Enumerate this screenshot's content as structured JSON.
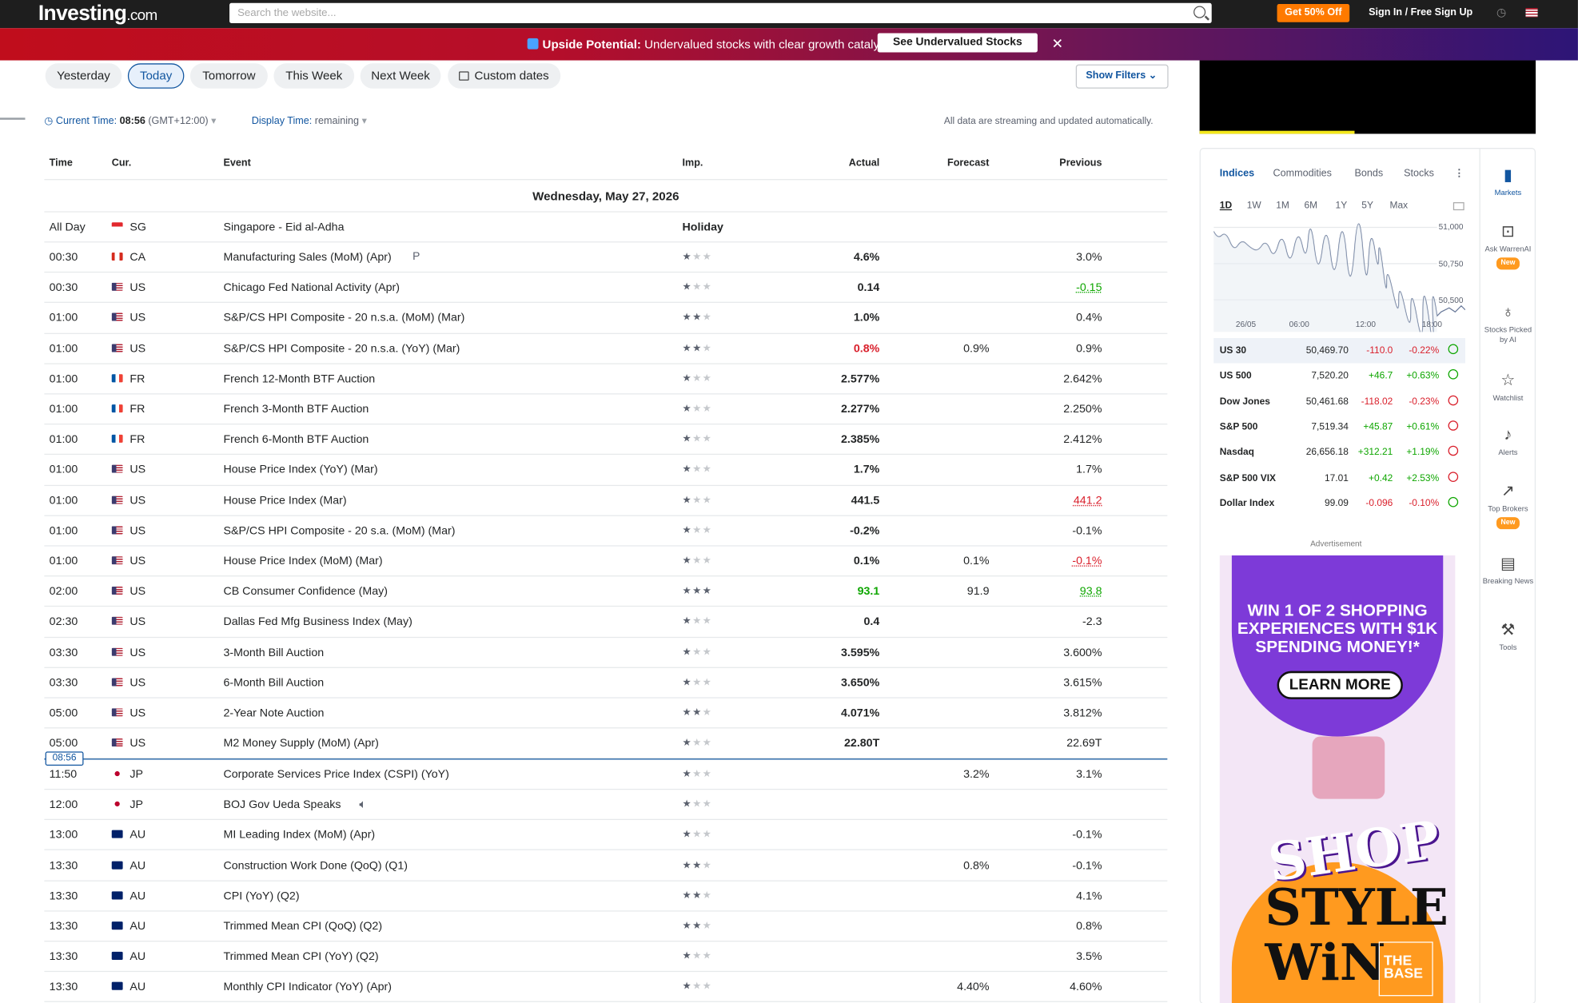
{
  "topbar": {
    "logo": "Investing",
    "logo_suffix": ".com",
    "search_placeholder": "Search the website...",
    "get_button": "Get 50% Off",
    "sign_in": "Sign In",
    "sep": "/",
    "free_sign_up": "Free Sign Up"
  },
  "banner": {
    "bold": "Upside Potential:",
    "text": " Undervalued stocks with clear growth catalysts",
    "button": "See Undervalued Stocks",
    "close": "✕"
  },
  "date_tabs": [
    "Yesterday",
    "Today",
    "Tomorrow",
    "This Week",
    "Next Week",
    "Custom dates"
  ],
  "show_filters": "Show Filters",
  "time_info": {
    "current_label": "Current Time:",
    "current_value": "08:56",
    "tz": "(GMT+12:00)",
    "display_label": "Display Time:",
    "display_value": "remaining",
    "streaming": "All data are streaming and updated automatically."
  },
  "table": {
    "headers": {
      "time": "Time",
      "cur": "Cur.",
      "event": "Event",
      "imp": "Imp.",
      "actual": "Actual",
      "forecast": "Forecast",
      "previous": "Previous"
    },
    "date_heading": "Wednesday, May 27, 2026",
    "holiday": {
      "time": "All Day",
      "cur": "SG",
      "event": "Singapore - Eid al-Adha",
      "label": "Holiday"
    },
    "rows": [
      {
        "time": "00:30",
        "cur": "CA",
        "event": "Manufacturing Sales (MoM) (Apr)",
        "stars": 1,
        "actual": "4.6%",
        "forecast": "",
        "previous": "3.0%"
      },
      {
        "time": "00:30",
        "cur": "US",
        "event": "Chicago Fed National Activity  (Apr)",
        "stars": 1,
        "actual": "0.14",
        "forecast": "",
        "previous": "-0.15"
      },
      {
        "time": "01:00",
        "cur": "US",
        "event": "S&P/CS HPI Composite - 20 n.s.a. (MoM) (Mar)",
        "stars": 2,
        "actual": "1.0%",
        "forecast": "",
        "previous": "0.4%"
      },
      {
        "time": "01:00",
        "cur": "US",
        "event": "S&P/CS HPI Composite - 20 n.s.a. (YoY) (Mar)",
        "stars": 2,
        "actual": "0.8%",
        "forecast": "0.9%",
        "previous": "0.9%"
      },
      {
        "time": "01:00",
        "cur": "FR",
        "event": "French 12-Month BTF Auction",
        "stars": 1,
        "actual": "2.577%",
        "forecast": "",
        "previous": "2.642%"
      },
      {
        "time": "01:00",
        "cur": "FR",
        "event": "French 3-Month BTF Auction",
        "stars": 1,
        "actual": "2.277%",
        "forecast": "",
        "previous": "2.250%"
      },
      {
        "time": "01:00",
        "cur": "FR",
        "event": "French 6-Month BTF Auction",
        "stars": 1,
        "actual": "2.385%",
        "forecast": "",
        "previous": "2.412%"
      },
      {
        "time": "01:00",
        "cur": "US",
        "event": "House Price Index (YoY) (Mar)",
        "stars": 1,
        "actual": "1.7%",
        "forecast": "",
        "previous": "1.7%"
      },
      {
        "time": "01:00",
        "cur": "US",
        "event": "House Price Index  (Mar)",
        "stars": 1,
        "actual": "441.5",
        "forecast": "",
        "previous": "441.2"
      },
      {
        "time": "01:00",
        "cur": "US",
        "event": "S&P/CS HPI Composite - 20 s.a. (MoM) (Mar)",
        "stars": 1,
        "actual": "-0.2%",
        "forecast": "",
        "previous": "-0.1%"
      },
      {
        "time": "01:00",
        "cur": "US",
        "event": "House Price Index (MoM) (Mar)",
        "stars": 1,
        "actual": "0.1%",
        "forecast": "0.1%",
        "previous": "-0.1%"
      },
      {
        "time": "02:00",
        "cur": "US",
        "event": "CB Consumer Confidence  (May)",
        "stars": 3,
        "actual": "93.1",
        "forecast": "91.9",
        "previous": "93.8"
      },
      {
        "time": "02:30",
        "cur": "US",
        "event": "Dallas Fed Mfg Business Index  (May)",
        "stars": 1,
        "actual": "0.4",
        "forecast": "",
        "previous": "-2.3"
      },
      {
        "time": "03:30",
        "cur": "US",
        "event": "3-Month Bill Auction",
        "stars": 1,
        "actual": "3.595%",
        "forecast": "",
        "previous": "3.600%"
      },
      {
        "time": "03:30",
        "cur": "US",
        "event": "6-Month Bill Auction",
        "stars": 1,
        "actual": "3.650%",
        "forecast": "",
        "previous": "3.615%"
      },
      {
        "time": "05:00",
        "cur": "US",
        "event": "2-Year Note Auction",
        "stars": 2,
        "actual": "4.071%",
        "forecast": "",
        "previous": "3.812%"
      },
      {
        "time": "05:00",
        "cur": "US",
        "event": "M2 Money Supply (MoM) (Apr)",
        "stars": 1,
        "actual": "22.80T",
        "forecast": "",
        "previous": "22.69T"
      },
      {
        "time": "11:50",
        "cur": "JP",
        "event": "Corporate Services Price Index (CSPI) (YoY)",
        "stars": 1,
        "actual": "",
        "forecast": "3.2%",
        "previous": "3.1%"
      },
      {
        "time": "12:00",
        "cur": "JP",
        "event": "BOJ Gov Ueda Speaks",
        "stars": 1,
        "actual": "",
        "forecast": "",
        "previous": ""
      },
      {
        "time": "13:00",
        "cur": "AU",
        "event": "MI Leading Index (MoM) (Apr)",
        "stars": 1,
        "actual": "",
        "forecast": "",
        "previous": "-0.1%"
      },
      {
        "time": "13:30",
        "cur": "AU",
        "event": "Construction Work Done (QoQ) (Q1)",
        "stars": 2,
        "actual": "",
        "forecast": "0.8%",
        "previous": "-0.1%"
      },
      {
        "time": "13:30",
        "cur": "AU",
        "event": "CPI (YoY) (Q2)",
        "stars": 2,
        "actual": "",
        "forecast": "",
        "previous": "4.1%"
      },
      {
        "time": "13:30",
        "cur": "AU",
        "event": "Trimmed Mean CPI (QoQ) (Q2)",
        "stars": 2,
        "actual": "",
        "forecast": "",
        "previous": "0.8%"
      },
      {
        "time": "13:30",
        "cur": "AU",
        "event": "Trimmed Mean CPI (YoY) (Q2)",
        "stars": 1,
        "actual": "",
        "forecast": "",
        "previous": "3.5%"
      },
      {
        "time": "13:30",
        "cur": "AU",
        "event": "Monthly CPI Indicator (YoY) (Apr)",
        "stars": 1,
        "actual": "",
        "forecast": "4.40%",
        "previous": "4.60%"
      }
    ],
    "now_tag": "08:56"
  },
  "markets": {
    "tabs": [
      "Indices",
      "Commodities",
      "Bonds",
      "Stocks"
    ],
    "ranges": [
      "1D",
      "1W",
      "1M",
      "6M",
      "1Y",
      "5Y",
      "Max"
    ],
    "chart_y_ticks": [
      "51,000",
      "50,750",
      "50,500"
    ],
    "chart_x_ticks": [
      "26/05",
      "06:00",
      "12:00",
      "18:00"
    ],
    "rows": [
      {
        "name": "US 30",
        "value": "50,469.70",
        "chg": "-110.0",
        "pct": "-0.22%",
        "dir": "down",
        "open": true
      },
      {
        "name": "US 500",
        "value": "7,520.20",
        "chg": "+46.7",
        "pct": "+0.63%",
        "dir": "up",
        "open": true
      },
      {
        "name": "Dow Jones",
        "value": "50,461.68",
        "chg": "-118.02",
        "pct": "-0.23%",
        "dir": "down",
        "open": false
      },
      {
        "name": "S&P 500",
        "value": "7,519.34",
        "chg": "+45.87",
        "pct": "+0.61%",
        "dir": "up",
        "open": false
      },
      {
        "name": "Nasdaq",
        "value": "26,656.18",
        "chg": "+312.21",
        "pct": "+1.19%",
        "dir": "up",
        "open": false
      },
      {
        "name": "S&P 500 VIX",
        "value": "17.01",
        "chg": "+0.42",
        "pct": "+2.53%",
        "dir": "up",
        "open": false
      },
      {
        "name": "Dollar Index",
        "value": "99.09",
        "chg": "-0.096",
        "pct": "-0.10%",
        "dir": "down",
        "open": true
      }
    ]
  },
  "ad": {
    "label": "Advertisement",
    "headline": "WIN 1 OF 2 SHOPPING EXPERIENCES WITH $1K SPENDING MONEY!*",
    "cta": "LEARN MORE",
    "w1": "SHOP",
    "w2": "STYLE",
    "w3": "WiN",
    "brand": "THE BASE"
  },
  "sidenav": [
    {
      "label": "Markets",
      "icon": "bar-chart-icon",
      "new": false
    },
    {
      "label": "Ask WarrenAI",
      "icon": "ai-icon",
      "new": true
    },
    {
      "label": "Stocks Picked by AI",
      "icon": "lightbulb-icon",
      "new": false
    },
    {
      "label": "Watchlist",
      "icon": "star-icon",
      "new": false
    },
    {
      "label": "Alerts",
      "icon": "bell-icon",
      "new": false
    },
    {
      "label": "Top Brokers",
      "icon": "trend-icon",
      "new": true
    },
    {
      "label": "Breaking News",
      "icon": "news-icon",
      "new": false
    },
    {
      "label": "Tools",
      "icon": "wrench-icon",
      "new": false
    }
  ],
  "new_badge": "New",
  "colors": {
    "accent": "#1256a0",
    "positive": "#0ea600",
    "negative": "#d91e2a",
    "cta": "#ff7a00"
  }
}
